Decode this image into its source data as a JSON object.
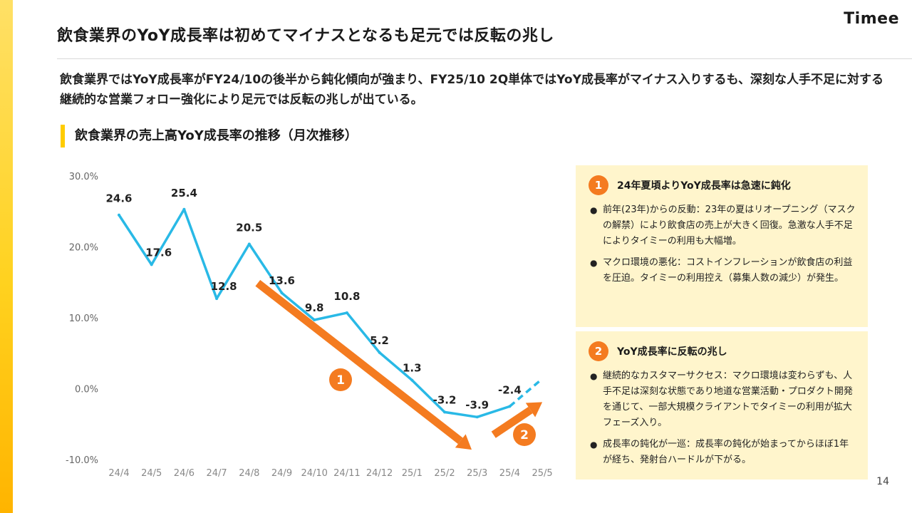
{
  "header": {
    "title": "飲食業界のYoY成長率は初めてマイナスとなるも足元では反転の兆し",
    "logo": "Timee"
  },
  "description": "飲食業界ではYoY成長率がFY24/10の後半から鈍化傾向が強まり、FY25/10 2Q単体ではYoY成長率がマイナス入りするも、深刻な人手不足に対する継続的な営業フォロー強化により足元では反転の兆しが出ている。",
  "section_heading": "飲食業界の売上高YoY成長率の推移（月次推移）",
  "colors": {
    "line": "#29b9e6",
    "arrow": "#f47b20",
    "panel_bg": "#fff5cc",
    "accent_bar": "#ffcc00",
    "badge": "#f47b20"
  },
  "chart_data": {
    "type": "line",
    "categories": [
      "24/4",
      "24/5",
      "24/6",
      "24/7",
      "24/8",
      "24/9",
      "24/10",
      "24/11",
      "24/12",
      "25/1",
      "25/2",
      "25/3",
      "25/4",
      "25/5"
    ],
    "series": [
      {
        "values": [
          24.6,
          17.6,
          25.4,
          12.8,
          20.5,
          13.6,
          9.8,
          10.8,
          5.2,
          1.3,
          -3.2,
          -3.9,
          -2.4,
          1.5
        ],
        "labeled_points": 13,
        "dashed_segment": "25/4 → 25/5"
      }
    ],
    "data_labels": [
      "24.6",
      "17.6",
      "25.4",
      "12.8",
      "20.5",
      "13.6",
      "9.8",
      "10.8",
      "5.2",
      "1.3",
      "-3.2",
      "-3.9",
      "-2.4"
    ],
    "y_ticks": [
      "30.0%",
      "20.0%",
      "10.0%",
      "0.0%",
      "-10.0%"
    ],
    "ylim": [
      -10,
      30
    ],
    "grid": false,
    "annotations": [
      {
        "label": "1",
        "arrow": "down",
        "from": "24/8",
        "to": "25/2"
      },
      {
        "label": "2",
        "arrow": "up",
        "from": "25/3",
        "to": "25/5"
      }
    ]
  },
  "panels": [
    {
      "number": "1",
      "title": "24年夏頃よりYoY成長率は急速に鈍化",
      "bullets": [
        "前年(23年)からの反動：23年の夏はリオープニング（マスクの解禁）により飲食店の売上が大きく回復。急激な人手不足によりタイミーの利用も大幅増。",
        "マクロ環境の悪化：コストインフレーションが飲食店の利益を圧迫。タイミーの利用控え（募集人数の減少）が発生。"
      ]
    },
    {
      "number": "2",
      "title": "YoY成長率に反転の兆し",
      "bullets": [
        "継続的なカスタマーサクセス：マクロ環境は変わらずも、人手不足は深刻な状態であり地道な営業活動・プロダクト開発を通じて、一部大規模クライアントでタイミーの利用が拡大フェーズ入り。",
        "成長率の鈍化が一巡：成長率の鈍化が始まってからほぼ1年が経ち、発射台ハードルが下がる。"
      ]
    }
  ],
  "page_number": "14"
}
